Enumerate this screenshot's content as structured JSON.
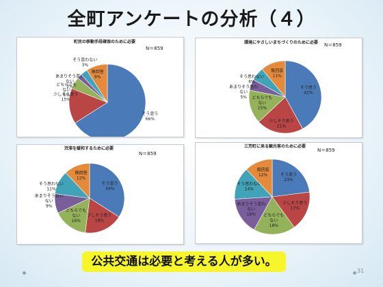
{
  "slide": {
    "title": "全町アンケートの分析（４）",
    "conclusion": "公共交通は必要と考える人が多い。",
    "page_number": "31"
  },
  "colors": {
    "そう思う": "#4a7ab8",
    "少しそう思う": "#b94545",
    "どちらでもない": "#94b25a",
    "あまりそう思わない": "#7a5d9b",
    "そう思わない": "#40a3b8",
    "無回答": "#e48a3a"
  },
  "chart_data": [
    {
      "type": "pie",
      "title": "町民の移動手段確保のために必要",
      "n_label": "N＝859",
      "slices": [
        {
          "category": "そう思う",
          "label": "そう思う",
          "pct": "66%",
          "value": 66
        },
        {
          "category": "少しそう思う",
          "label": "少しそう思う",
          "pct": "15%",
          "value": 15
        },
        {
          "category": "どちらでもない",
          "label": "どちらでもない",
          "pct": "5%",
          "value": 5
        },
        {
          "category": "あまりそう思わない",
          "label": "あまりそう思わない",
          "pct": "2%",
          "value": 2
        },
        {
          "category": "そう思わない",
          "label": "そう思わない",
          "pct": "3%",
          "value": 3
        },
        {
          "category": "無回答",
          "label": "無回答",
          "pct": "9%",
          "value": 9
        }
      ]
    },
    {
      "type": "pie",
      "title": "環境にやさしいまちづくりのために必要",
      "n_label": "N＝859",
      "slices": [
        {
          "category": "そう思う",
          "label": "そう思う",
          "pct": "42%",
          "value": 42
        },
        {
          "category": "少しそう思う",
          "label": "少しそう思う",
          "pct": "21%",
          "value": 21
        },
        {
          "category": "どちらでもない",
          "label": "どちらでもない",
          "pct": "15%",
          "value": 15
        },
        {
          "category": "あまりそう思わない",
          "label": "あまりそう思わない",
          "pct": "5%",
          "value": 5
        },
        {
          "category": "そう思わない",
          "label": "そう思わない",
          "pct": "6%",
          "value": 6
        },
        {
          "category": "無回答",
          "label": "無回答",
          "pct": "11%",
          "value": 11
        }
      ]
    },
    {
      "type": "pie",
      "title": "渋滞を緩和するために必要",
      "n_label": "N＝859",
      "slices": [
        {
          "category": "そう思う",
          "label": "そう思う",
          "pct": "34%",
          "value": 34
        },
        {
          "category": "少しそう思う",
          "label": "少しそう思う",
          "pct": "18%",
          "value": 18
        },
        {
          "category": "どちらでもない",
          "label": "どちらでもない",
          "pct": "16%",
          "value": 16
        },
        {
          "category": "あまりそう思わない",
          "label": "あまりそう思わない",
          "pct": "9%",
          "value": 9
        },
        {
          "category": "そう思わない",
          "label": "そう思わない",
          "pct": "11%",
          "value": 11
        },
        {
          "category": "無回答",
          "label": "無回答",
          "pct": "12%",
          "value": 12
        }
      ]
    },
    {
      "type": "pie",
      "title": "三芳町に来る観光客のために必要",
      "n_label": "N＝859",
      "slices": [
        {
          "category": "そう思う",
          "label": "そう思う",
          "pct": "23%",
          "value": 23
        },
        {
          "category": "少しそう思う",
          "label": "少しそう思う",
          "pct": "17%",
          "value": 17
        },
        {
          "category": "どちらでもない",
          "label": "どちらでもない",
          "pct": "18%",
          "value": 18
        },
        {
          "category": "あまりそう思わない",
          "label": "あまりそう思わない",
          "pct": "16%",
          "value": 16
        },
        {
          "category": "そう思わない",
          "label": "そう思わない",
          "pct": "14%",
          "value": 14
        },
        {
          "category": "無回答",
          "label": "無回答",
          "pct": "12%",
          "value": 12
        }
      ]
    }
  ]
}
